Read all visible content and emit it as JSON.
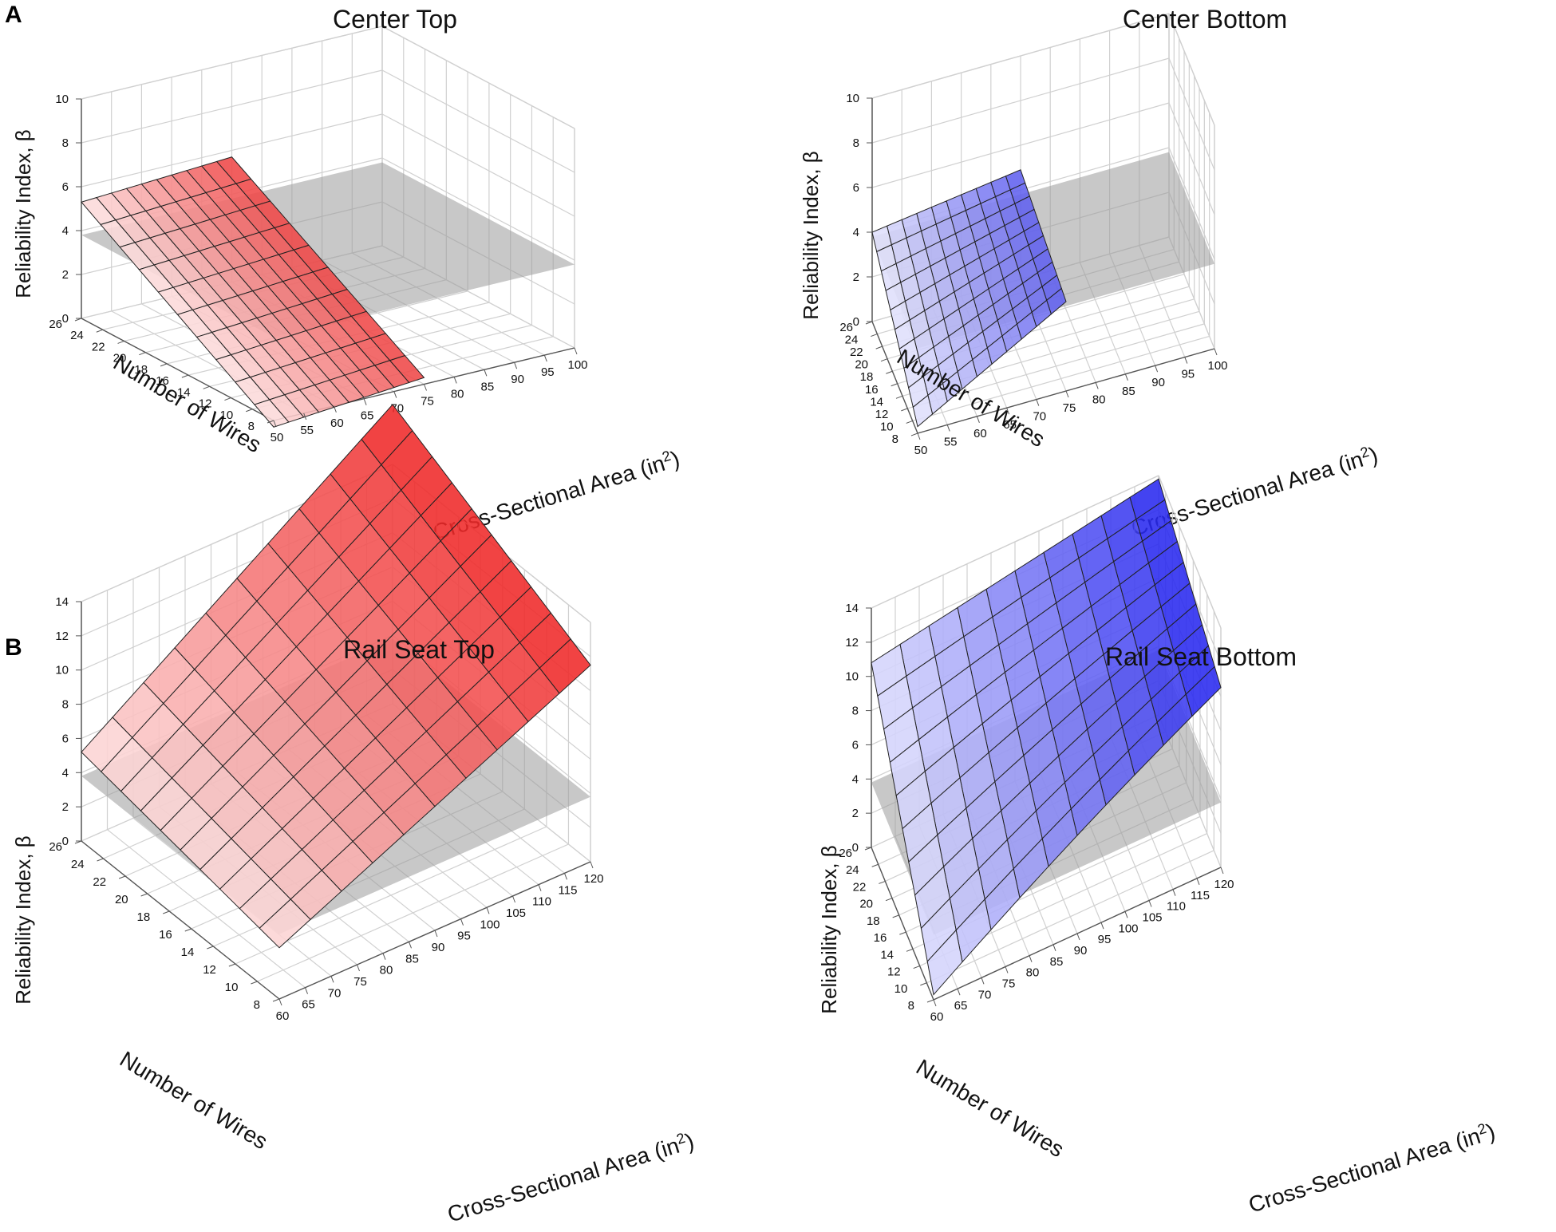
{
  "figure": {
    "panel_labels": [
      "A",
      "B"
    ]
  },
  "chart_data": [
    {
      "type": "surface3d",
      "panel": "A",
      "title": "Center Top",
      "xlabel": "Cross-Sectional Area (in",
      "xlabel_sup": "2",
      "xlabel_close": ")",
      "ylabel": "Number of Wires",
      "zlabel": "Reliability Index, β",
      "x_range": [
        50,
        100
      ],
      "x_ticks": [
        50,
        55,
        60,
        65,
        70,
        75,
        80,
        85,
        90,
        95,
        100
      ],
      "y_range": [
        8,
        26
      ],
      "y_ticks": [
        8,
        10,
        12,
        14,
        16,
        18,
        20,
        22,
        24,
        26
      ],
      "z_range": [
        0,
        10
      ],
      "z_ticks": [
        0,
        2,
        4,
        6,
        8,
        10
      ],
      "threshold_plane_beta": 3.8,
      "surface_color": "#ee4040",
      "surface_x_range": [
        50,
        75
      ],
      "surface_y_range": [
        8,
        26
      ],
      "corner_values": {
        "x_min_y_min": -0.3,
        "x_min_y_max": 5.3,
        "x_max_y_min": 0.3,
        "x_max_y_max": 5.7
      },
      "shading": "increasing_with_x"
    },
    {
      "type": "surface3d",
      "panel": "A",
      "title": "Center Bottom",
      "xlabel": "Cross-Sectional Area (in",
      "xlabel_sup": "2",
      "xlabel_close": ")",
      "ylabel": "Number of Wires",
      "zlabel": "Reliability Index, β",
      "x_range": [
        50,
        100
      ],
      "x_ticks": [
        50,
        55,
        60,
        65,
        70,
        75,
        80,
        85,
        90,
        95,
        100
      ],
      "y_range": [
        8,
        26
      ],
      "y_ticks": [
        8,
        10,
        12,
        14,
        16,
        18,
        20,
        22,
        24,
        26
      ],
      "z_range": [
        0,
        10
      ],
      "z_ticks": [
        0,
        2,
        4,
        6,
        8,
        10
      ],
      "threshold_plane_beta": 3.8,
      "surface_color": "#5a5aee",
      "surface_x_range": [
        50,
        75
      ],
      "surface_y_range": [
        8,
        26
      ],
      "corner_values": {
        "x_min_y_min": 0.3,
        "x_min_y_max": 4.0,
        "x_max_y_min": 4.0,
        "x_max_y_max": 4.9
      },
      "shading": "increasing_with_x"
    },
    {
      "type": "surface3d",
      "panel": "B",
      "title": "Rail Seat Top",
      "xlabel": "Cross-Sectional Area (in",
      "xlabel_sup": "2",
      "xlabel_close": ")",
      "ylabel": "Number of Wires",
      "zlabel": "Reliability Index, β",
      "x_range": [
        60,
        120
      ],
      "x_ticks": [
        60,
        65,
        70,
        75,
        80,
        85,
        90,
        95,
        100,
        105,
        110,
        115,
        120
      ],
      "y_range": [
        8,
        26
      ],
      "y_ticks": [
        8,
        10,
        12,
        14,
        16,
        18,
        20,
        22,
        24,
        26
      ],
      "z_range": [
        0,
        14
      ],
      "z_ticks": [
        0,
        2,
        4,
        6,
        8,
        10,
        12,
        14
      ],
      "threshold_plane_beta": 3.8,
      "surface_color": "#ee2020",
      "surface_x_range": [
        60,
        120
      ],
      "surface_y_range": [
        8,
        26
      ],
      "corner_values": {
        "x_min_y_min": 3.0,
        "x_min_y_max": 5.2,
        "x_max_y_min": 11.5,
        "x_max_y_max": 17.5
      },
      "shading": "increasing_with_x"
    },
    {
      "type": "surface3d",
      "panel": "B",
      "title": "Rail Seat Bottom",
      "xlabel": "Cross-Sectional Area (in",
      "xlabel_sup": "2",
      "xlabel_close": ")",
      "ylabel": "Number of Wires",
      "zlabel": "Reliability Index, β",
      "x_range": [
        60,
        120
      ],
      "x_ticks": [
        60,
        65,
        70,
        75,
        80,
        85,
        90,
        95,
        100,
        105,
        110,
        115,
        120
      ],
      "y_range": [
        8,
        26
      ],
      "y_ticks": [
        8,
        10,
        12,
        14,
        16,
        18,
        20,
        22,
        24,
        26
      ],
      "z_range": [
        0,
        14
      ],
      "z_ticks": [
        0,
        2,
        4,
        6,
        8,
        10,
        12,
        14
      ],
      "threshold_plane_beta": 3.8,
      "surface_color": "#2020ee",
      "surface_x_range": [
        60,
        120
      ],
      "surface_y_range": [
        8,
        26
      ],
      "corner_values": {
        "x_min_y_min": 0.3,
        "x_min_y_max": 10.8,
        "x_max_y_min": 9.2,
        "x_max_y_max": 13.8
      },
      "curvature": 2.2,
      "shading": "increasing_with_x"
    }
  ]
}
